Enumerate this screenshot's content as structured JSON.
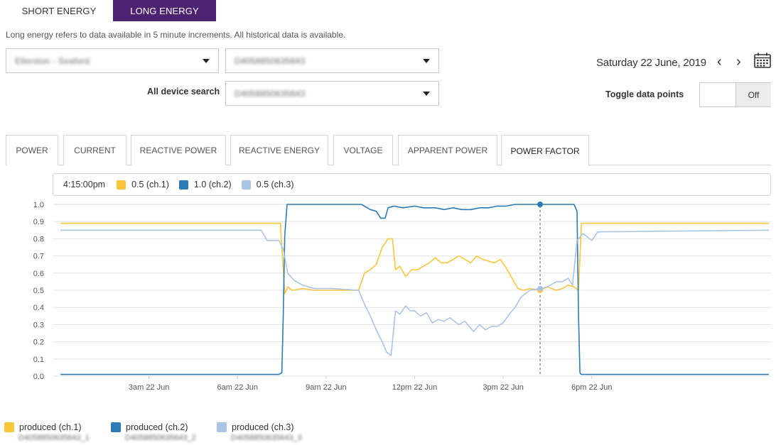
{
  "tabs": {
    "short_energy": "SHORT ENERGY",
    "long_energy": "LONG ENERGY",
    "active": "long_energy"
  },
  "description": "Long energy refers to data available in 5 minute increments. All historical data is available.",
  "selects": {
    "site": "Ellerston - Seaford",
    "device": "D4058850635643",
    "all_device_search_label": "All device search",
    "all_device": "D4058850635643"
  },
  "date": {
    "text": "Saturday 22 June, 2019",
    "prev_label": "‹",
    "next_label": "›"
  },
  "toggle": {
    "label": "Toggle data points",
    "state": "Off"
  },
  "metric_tabs": [
    {
      "label": "POWER"
    },
    {
      "label": "CURRENT"
    },
    {
      "label": "REACTIVE POWER"
    },
    {
      "label": "REACTIVE ENERGY"
    },
    {
      "label": "VOLTAGE"
    },
    {
      "label": "APPARENT POWER"
    },
    {
      "label": "POWER FACTOR",
      "active": true
    }
  ],
  "hover": {
    "time": "4:15:00pm",
    "items": [
      {
        "label": "0.5 (ch.1)",
        "color": "#f9c53a"
      },
      {
        "label": "1.0 (ch.2)",
        "color": "#2c7bb6"
      },
      {
        "label": "0.5 (ch.3)",
        "color": "#abc4e5"
      }
    ]
  },
  "legend": [
    {
      "label": "produced (ch.1)",
      "id": "D4058850635643_1",
      "id_suffix": "_1",
      "color": "#f9c53a"
    },
    {
      "label": "produced (ch.2)",
      "id": "D4058850635643_2",
      "id_suffix": "_2",
      "color": "#2c7bb6"
    },
    {
      "label": "produced (ch.3)",
      "id": "D4058850635643_3",
      "id_suffix": "_3",
      "color": "#abc4e5"
    }
  ],
  "chart_data": {
    "type": "line",
    "xlim": [
      0,
      24
    ],
    "ylim": [
      0,
      1.0
    ],
    "yticks": [
      "0.0",
      "0.1",
      "0.2",
      "0.3",
      "0.4",
      "0.5",
      "0.6",
      "0.7",
      "0.8",
      "0.9",
      "1.0"
    ],
    "xticks": [
      {
        "x": 3,
        "label": "3am 22 Jun"
      },
      {
        "x": 6,
        "label": "6am 22 Jun"
      },
      {
        "x": 9,
        "label": "9am 22 Jun"
      },
      {
        "x": 12,
        "label": "12pm 22 Jun"
      },
      {
        "x": 15,
        "label": "3pm 22 Jun"
      },
      {
        "x": 18,
        "label": "6pm 22 Jun"
      }
    ],
    "grid": true,
    "hover_x": 16.25,
    "series": [
      {
        "name": "produced (ch.1)",
        "color": "#f9c53a",
        "points": [
          [
            0,
            0.89
          ],
          [
            7.1,
            0.89
          ],
          [
            7.45,
            0.89
          ],
          [
            7.6,
            0.48
          ],
          [
            7.7,
            0.52
          ],
          [
            7.85,
            0.5
          ],
          [
            8.2,
            0.51
          ],
          [
            8.6,
            0.5
          ],
          [
            9.2,
            0.5
          ],
          [
            10.1,
            0.5
          ],
          [
            10.3,
            0.6
          ],
          [
            10.5,
            0.62
          ],
          [
            10.7,
            0.65
          ],
          [
            10.9,
            0.75
          ],
          [
            11.1,
            0.8
          ],
          [
            11.25,
            0.8
          ],
          [
            11.35,
            0.62
          ],
          [
            11.5,
            0.64
          ],
          [
            11.7,
            0.58
          ],
          [
            11.9,
            0.62
          ],
          [
            12.1,
            0.62
          ],
          [
            12.3,
            0.64
          ],
          [
            12.5,
            0.66
          ],
          [
            12.7,
            0.69
          ],
          [
            12.9,
            0.66
          ],
          [
            13.1,
            0.66
          ],
          [
            13.3,
            0.68
          ],
          [
            13.5,
            0.7
          ],
          [
            13.7,
            0.68
          ],
          [
            13.9,
            0.66
          ],
          [
            14.1,
            0.7
          ],
          [
            14.3,
            0.68
          ],
          [
            14.5,
            0.67
          ],
          [
            14.7,
            0.66
          ],
          [
            14.9,
            0.68
          ],
          [
            15.1,
            0.63
          ],
          [
            15.3,
            0.57
          ],
          [
            15.5,
            0.51
          ],
          [
            15.7,
            0.5
          ],
          [
            15.9,
            0.51
          ],
          [
            16.25,
            0.5
          ],
          [
            16.5,
            0.52
          ],
          [
            16.8,
            0.5
          ],
          [
            17.0,
            0.51
          ],
          [
            17.2,
            0.53
          ],
          [
            17.4,
            0.52
          ],
          [
            17.55,
            0.5
          ],
          [
            17.65,
            0.89
          ],
          [
            24,
            0.89
          ]
        ]
      },
      {
        "name": "produced (ch.2)",
        "color": "#2c7bb6",
        "points": [
          [
            0,
            0.01
          ],
          [
            7.4,
            0.01
          ],
          [
            7.5,
            0.02
          ],
          [
            7.55,
            0.35
          ],
          [
            7.6,
            0.82
          ],
          [
            7.68,
            1.0
          ],
          [
            8.5,
            1.0
          ],
          [
            9.5,
            1.0
          ],
          [
            10.2,
            1.0
          ],
          [
            10.5,
            0.97
          ],
          [
            10.7,
            0.96
          ],
          [
            10.85,
            0.92
          ],
          [
            11.0,
            0.92
          ],
          [
            11.1,
            0.98
          ],
          [
            11.3,
            0.99
          ],
          [
            11.6,
            0.98
          ],
          [
            12.0,
            0.99
          ],
          [
            12.3,
            0.98
          ],
          [
            12.7,
            0.98
          ],
          [
            13.0,
            0.97
          ],
          [
            13.3,
            0.98
          ],
          [
            13.6,
            0.97
          ],
          [
            13.9,
            0.97
          ],
          [
            14.2,
            0.98
          ],
          [
            14.5,
            0.98
          ],
          [
            14.8,
            0.99
          ],
          [
            15.1,
            0.99
          ],
          [
            15.4,
            1.0
          ],
          [
            16.25,
            1.0
          ],
          [
            17.4,
            1.0
          ],
          [
            17.5,
            0.96
          ],
          [
            17.55,
            0.35
          ],
          [
            17.6,
            0.02
          ],
          [
            17.65,
            0.01
          ],
          [
            24,
            0.01
          ]
        ]
      },
      {
        "name": "produced (ch.3)",
        "color": "#abc4e5",
        "points": [
          [
            0,
            0.85
          ],
          [
            6.8,
            0.85
          ],
          [
            7.0,
            0.79
          ],
          [
            7.4,
            0.79
          ],
          [
            7.55,
            0.74
          ],
          [
            7.7,
            0.6
          ],
          [
            7.9,
            0.56
          ],
          [
            8.2,
            0.53
          ],
          [
            8.6,
            0.51
          ],
          [
            9.2,
            0.51
          ],
          [
            10.1,
            0.5
          ],
          [
            10.3,
            0.42
          ],
          [
            10.5,
            0.35
          ],
          [
            10.7,
            0.27
          ],
          [
            10.9,
            0.2
          ],
          [
            11.05,
            0.14
          ],
          [
            11.2,
            0.12
          ],
          [
            11.35,
            0.38
          ],
          [
            11.5,
            0.36
          ],
          [
            11.7,
            0.41
          ],
          [
            11.85,
            0.38
          ],
          [
            12.0,
            0.38
          ],
          [
            12.2,
            0.35
          ],
          [
            12.4,
            0.37
          ],
          [
            12.6,
            0.31
          ],
          [
            12.8,
            0.33
          ],
          [
            13.0,
            0.32
          ],
          [
            13.2,
            0.34
          ],
          [
            13.5,
            0.3
          ],
          [
            13.7,
            0.32
          ],
          [
            14.0,
            0.26
          ],
          [
            14.2,
            0.3
          ],
          [
            14.4,
            0.27
          ],
          [
            14.6,
            0.29
          ],
          [
            14.8,
            0.29
          ],
          [
            15.0,
            0.31
          ],
          [
            15.2,
            0.36
          ],
          [
            15.4,
            0.4
          ],
          [
            15.6,
            0.46
          ],
          [
            15.9,
            0.5
          ],
          [
            16.25,
            0.51
          ],
          [
            16.5,
            0.52
          ],
          [
            16.8,
            0.55
          ],
          [
            17.0,
            0.55
          ],
          [
            17.2,
            0.57
          ],
          [
            17.35,
            0.53
          ],
          [
            17.5,
            0.79
          ],
          [
            17.7,
            0.83
          ],
          [
            18.0,
            0.79
          ],
          [
            18.2,
            0.84
          ],
          [
            24,
            0.85
          ]
        ]
      }
    ]
  }
}
